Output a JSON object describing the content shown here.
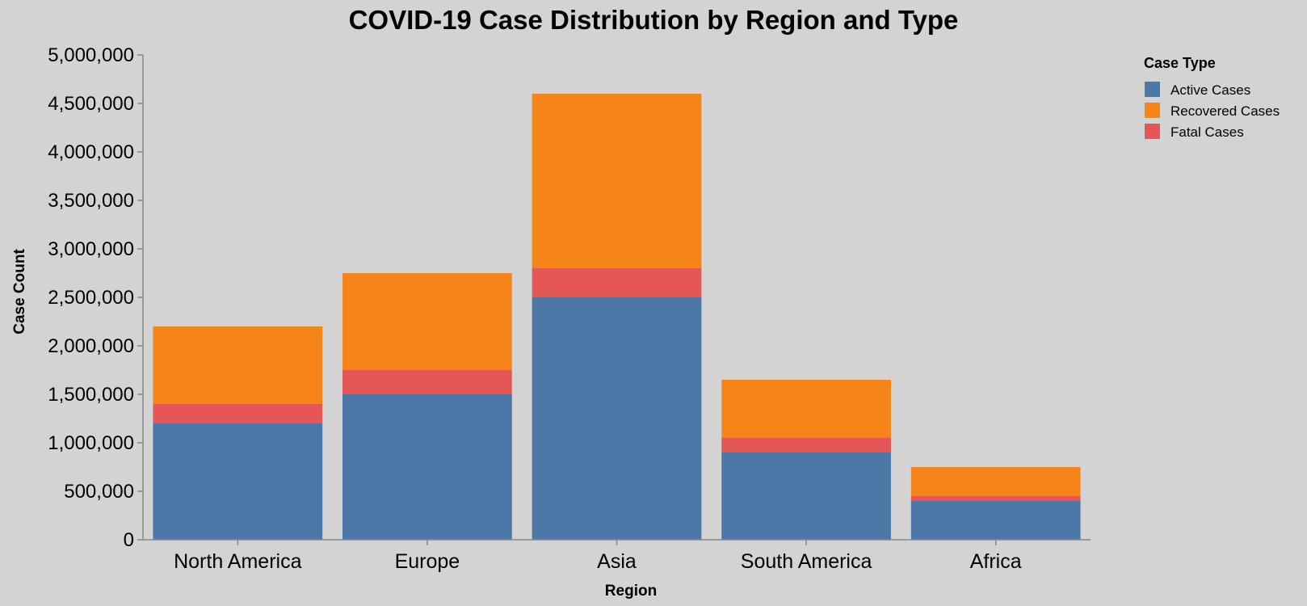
{
  "chart_data": {
    "type": "bar",
    "stacked": true,
    "title": "COVID-19 Case Distribution by Region and Type",
    "xlabel": "Region",
    "ylabel": "Case Count",
    "categories": [
      "North America",
      "Europe",
      "Asia",
      "South America",
      "Africa"
    ],
    "series": [
      {
        "name": "Active Cases",
        "color": "#4c78a8",
        "values": [
          1200000,
          1500000,
          2500000,
          900000,
          400000
        ]
      },
      {
        "name": "Fatal Cases",
        "color": "#e45756",
        "values": [
          200000,
          250000,
          300000,
          150000,
          50000
        ]
      },
      {
        "name": "Recovered Cases",
        "color": "#f58518",
        "values": [
          800000,
          1000000,
          1800000,
          600000,
          300000
        ]
      }
    ],
    "ylim": [
      0,
      5000000
    ],
    "yticks": [
      "0",
      "500,000",
      "1,000,000",
      "1,500,000",
      "2,000,000",
      "2,500,000",
      "3,000,000",
      "3,500,000",
      "4,000,000",
      "4,500,000",
      "5,000,000"
    ],
    "yticks_values": [
      0,
      500000,
      1000000,
      1500000,
      2000000,
      2500000,
      3000000,
      3500000,
      4000000,
      4500000,
      5000000
    ],
    "grid": false,
    "legend": {
      "title": "Case Type",
      "placement": "top-right",
      "entries": [
        {
          "label": "Active Cases",
          "color": "#4c78a8"
        },
        {
          "label": "Recovered Cases",
          "color": "#f58518"
        },
        {
          "label": "Fatal Cases",
          "color": "#e45756"
        }
      ]
    }
  }
}
